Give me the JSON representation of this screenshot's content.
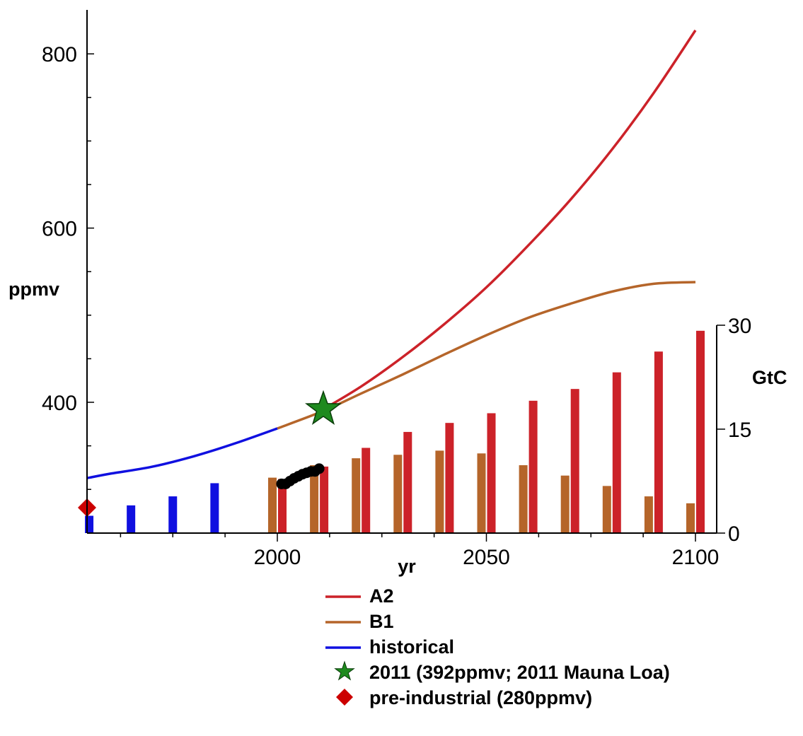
{
  "chart_data": {
    "type": "line",
    "title": "",
    "xlabel": "yr",
    "ylabel": "ppmv",
    "y2label": "GtC",
    "xlim": [
      1950,
      2105
    ],
    "ylim": [
      250,
      850
    ],
    "y2lim": [
      0,
      30
    ],
    "x_ticks": [
      2000,
      2050,
      2100
    ],
    "y_ticks": [
      400,
      600,
      800
    ],
    "y2_ticks": [
      0,
      15,
      30
    ],
    "colors": {
      "A2": "#cc2229",
      "B1": "#b5652a",
      "historical": "#1010e0",
      "star": "#1e8a1e",
      "preindustrial": "#cc0000",
      "observations": "#000000"
    },
    "lines": [
      {
        "name": "A2",
        "color": "#cc2229",
        "x": [
          2011,
          2020,
          2030,
          2040,
          2050,
          2060,
          2070,
          2080,
          2090,
          2100
        ],
        "y": [
          392,
          418,
          452,
          490,
          532,
          580,
          632,
          690,
          755,
          827
        ]
      },
      {
        "name": "B1",
        "color": "#b5652a",
        "x": [
          2000,
          2011,
          2020,
          2030,
          2040,
          2050,
          2060,
          2070,
          2080,
          2090,
          2100
        ],
        "y": [
          370,
          390,
          410,
          432,
          455,
          477,
          497,
          513,
          527,
          536,
          538
        ]
      },
      {
        "name": "historical",
        "color": "#1010e0",
        "x": [
          1950,
          1960,
          1970,
          1980,
          1990,
          2000
        ],
        "y": [
          313,
          318,
          326,
          338,
          353,
          370
        ]
      }
    ],
    "bars_GtC": [
      {
        "name": "historical",
        "color": "#1010e0",
        "x": [
          1955,
          1965,
          1975,
          1985,
          1995
        ],
        "values": [
          2.5,
          4,
          5.3,
          7.2,
          0
        ]
      },
      {
        "name": "B1",
        "color": "#b5652a",
        "x": [
          2000,
          2010,
          2020,
          2030,
          2040,
          2050,
          2060,
          2070,
          2080,
          2090,
          2100
        ],
        "values": [
          8,
          9.8,
          10.8,
          11.3,
          11.9,
          11.5,
          9.8,
          8.3,
          6.8,
          5.3,
          4.3
        ]
      },
      {
        "name": "A2",
        "color": "#cc2229",
        "x": [
          2000,
          2010,
          2020,
          2030,
          2040,
          2050,
          2060,
          2070,
          2080,
          2090,
          2100
        ],
        "values": [
          7.8,
          9.6,
          12.3,
          14.6,
          15.9,
          17.3,
          19.1,
          20.8,
          23.2,
          26.2,
          29.2
        ]
      }
    ],
    "observations": {
      "x": [
        2001,
        2002,
        2003,
        2004,
        2005,
        2006,
        2007,
        2008,
        2009,
        2010
      ],
      "values_GtC": [
        7.1,
        7.1,
        7.5,
        7.9,
        8.2,
        8.5,
        8.7,
        8.9,
        8.9,
        9.3
      ]
    },
    "markers": [
      {
        "name": "2011 (392ppmv; 2011 Mauna Loa)",
        "shape": "star",
        "x": 2011,
        "y": 392
      },
      {
        "name": "pre-industrial (280ppmv)",
        "shape": "diamond",
        "x": 1950,
        "y": 280
      }
    ],
    "legend": {
      "placement": "bottom-center",
      "entries": [
        {
          "label": "A2",
          "symbol": "line",
          "color": "#cc2229"
        },
        {
          "label": "B1",
          "symbol": "line",
          "color": "#b5652a"
        },
        {
          "label": "historical",
          "symbol": "line",
          "color": "#1010e0"
        },
        {
          "label": "2011 (392ppmv; 2011 Mauna Loa)",
          "symbol": "star",
          "color": "#1e8a1e"
        },
        {
          "label": "pre-industrial (280ppmv)",
          "symbol": "diamond",
          "color": "#cc0000"
        }
      ]
    },
    "grid": false
  }
}
